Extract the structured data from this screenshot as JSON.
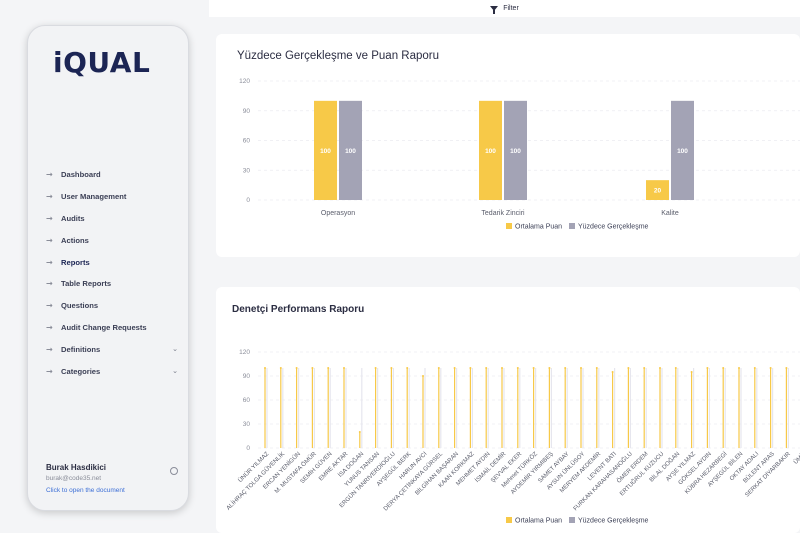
{
  "sidebar": {
    "logo": "iQUAL",
    "items": [
      {
        "label": "Dashboard"
      },
      {
        "label": "User Management"
      },
      {
        "label": "Audits"
      },
      {
        "label": "Actions"
      },
      {
        "label": "Reports"
      },
      {
        "label": "Table Reports"
      },
      {
        "label": "Questions"
      },
      {
        "label": "Audit Change Requests"
      },
      {
        "label": "Definitions"
      },
      {
        "label": "Categories"
      }
    ],
    "active_item": "Reports",
    "user": {
      "name": "Burak Hasdikici",
      "email": "burak@code35.net",
      "doc_link": "Click to open the document"
    }
  },
  "topbar": {
    "filter_label": "Filter"
  },
  "colors": {
    "orange": "#f7c948",
    "gray": "#a3a3b5",
    "accent": "#1c2554"
  },
  "chart_data": [
    {
      "type": "bar",
      "title": "Yüzdece Gerçekleşme ve Puan Raporu",
      "categories": [
        "Operasyon",
        "Tedarik Zinciri",
        "Kalite"
      ],
      "series": [
        {
          "name": "Ortalama Puan",
          "values": [
            100,
            100,
            20
          ]
        },
        {
          "name": "Yüzdece Gerçekleşme",
          "values": [
            100,
            100,
            100
          ]
        }
      ],
      "ylim": [
        0,
        120
      ],
      "yticks": [
        0,
        30,
        60,
        90,
        120
      ],
      "grid": true,
      "legend": "bottom"
    },
    {
      "type": "bar",
      "title": "Denetçi Performans Raporu",
      "categories": [
        "ÜNÜR YILMAZ",
        "ALİHRAÇ TOLGA GÜVENLİK",
        "ERCAN YENİGÜN",
        "M. MUSTAFA ÖMÜR",
        "SEMİH GÜVEN",
        "EMRE AKTAR",
        "İSA DOĞAN",
        "YUNUS TANSAN",
        "ERGÜN TANRIVERDİOĞLU",
        "AYŞEGÜL BERK",
        "HARUN AVCI",
        "DERYA ÇETİNKAYA GÜRSEL",
        "BİLGİHAN BAŞARAN",
        "KAAN KORKMAZ",
        "MEHMET AYDIN",
        "İSMAİL DEMİR",
        "ŞEVVAL EKER",
        "Mehmet TÜRKÖZ",
        "AYDEMİR YIRMIBEŞ",
        "SAMET AYBAY",
        "AYSUN ÜNLÜSOY",
        "MERYEM AKDEMİR",
        "LEVENT BATI",
        "FURKAN KARAHASANOĞLU",
        "ÖMER ERDEM",
        "ERTUĞRUL KUZUCU",
        "BİLAL DOĞAN",
        "AYŞE YILMAZ",
        "GÖKSEL AYDIN",
        "KÜBRA HEZARBEGİ",
        "AYŞEGÜL BİLEN",
        "OKTAY ADALI",
        "BÜLENT ARAS",
        "SERKAT DİYARBAKIR",
        "ÜMİT"
      ],
      "series": [
        {
          "name": "Ortalama Puan",
          "values": [
            100,
            100,
            100,
            100,
            100,
            100,
            20,
            100,
            100,
            100,
            90,
            100,
            100,
            100,
            100,
            100,
            100,
            100,
            100,
            100,
            100,
            100,
            95,
            100,
            100,
            100,
            100,
            95,
            100,
            100,
            100,
            100,
            100,
            100,
            100
          ]
        },
        {
          "name": "Yüzdece Gerçekleşme",
          "values": [
            100,
            100,
            100,
            100,
            100,
            100,
            100,
            100,
            100,
            100,
            100,
            100,
            100,
            100,
            100,
            100,
            100,
            100,
            100,
            100,
            100,
            100,
            100,
            100,
            100,
            100,
            100,
            100,
            100,
            100,
            100,
            100,
            100,
            100,
            100
          ]
        }
      ],
      "ylim": [
        0,
        120
      ],
      "yticks": [
        0,
        30,
        60,
        90,
        120
      ],
      "grid": true,
      "legend": "bottom"
    }
  ]
}
